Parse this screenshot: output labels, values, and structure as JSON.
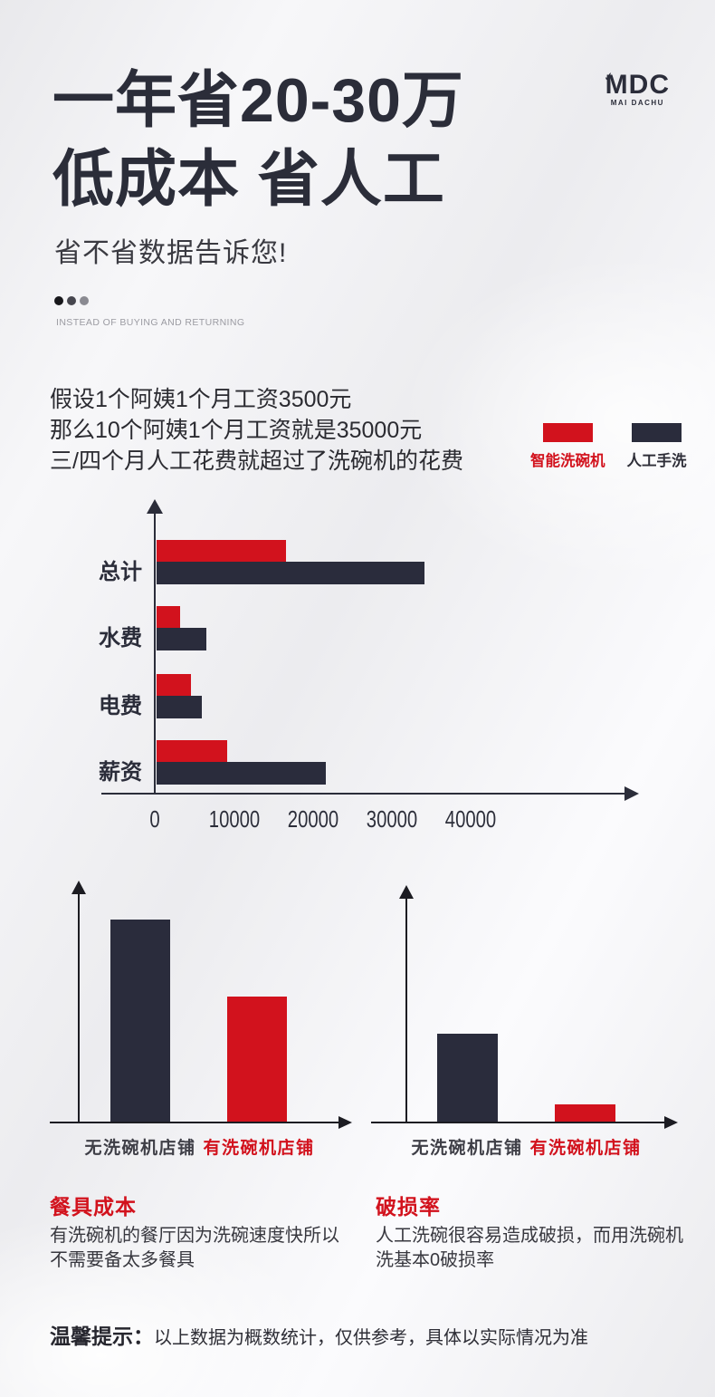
{
  "brand": {
    "name": "MDC",
    "subtitle": "MAI DACHU",
    "check": "✓"
  },
  "header": {
    "title_line1": "一年省20-30万",
    "title_line2": "低成本 省人工",
    "subtitle": "省不省数据告诉您!",
    "tagline": "INSTEAD OF BUYING AND RETURNING",
    "dot_colors": [
      "#17171b",
      "#46464e",
      "#8a8a91"
    ]
  },
  "intro": {
    "lines": [
      "假设1个阿姨1个月工资3500元",
      "那么10个阿姨1个月工资就是35000元",
      "三/四个月人工花费就超过了洗碗机的花费"
    ]
  },
  "colors": {
    "red": "#d2121d",
    "dark_navy": "#2a2c3c"
  },
  "chart_data": [
    {
      "type": "bar",
      "orientation": "horizontal",
      "categories": [
        "总计",
        "水费",
        "电费",
        "薪资"
      ],
      "series": [
        {
          "name": "智能洗碗机",
          "color": "#d2121d",
          "values": [
            16400,
            3000,
            4400,
            9000
          ]
        },
        {
          "name": "人工手洗",
          "color": "#2a2c3c",
          "values": [
            34000,
            6300,
            5700,
            21500
          ]
        }
      ],
      "xlim": [
        0,
        40000
      ],
      "x_tick_labels": [
        "0",
        "10000",
        "20000",
        "30000",
        "40000"
      ],
      "unit": "元",
      "values_estimated_from_pixels": true,
      "grid": false,
      "legend_position": "above-right"
    },
    {
      "type": "bar",
      "orientation": "vertical",
      "title": "餐具成本",
      "categories": [
        "无洗碗机店铺",
        "有洗碗机店铺"
      ],
      "values_relative": [
        1.0,
        0.62
      ],
      "bar_colors": [
        "#2a2c3c",
        "#d2121d"
      ],
      "axis_tick_labels_shown": false
    },
    {
      "type": "bar",
      "orientation": "vertical",
      "title": "破损率",
      "categories": [
        "无洗碗机店铺",
        "有洗碗机店铺"
      ],
      "values_relative": [
        1.0,
        0.2
      ],
      "bar_colors": [
        "#2a2c3c",
        "#d2121d"
      ],
      "axis_tick_labels_shown": false
    }
  ],
  "sections": [
    {
      "lines": [
        "有洗碗机的餐厅因为洗碗速度快所以",
        "不需要备太多餐具"
      ]
    },
    {
      "lines": [
        "人工洗碗很容易造成破损，而用洗碗机",
        "洗基本0破损率"
      ]
    }
  ],
  "footer": {
    "prefix": "温馨提示：",
    "body": "以上数据为概数统计，仅供参考，具体以实际情况为准"
  }
}
